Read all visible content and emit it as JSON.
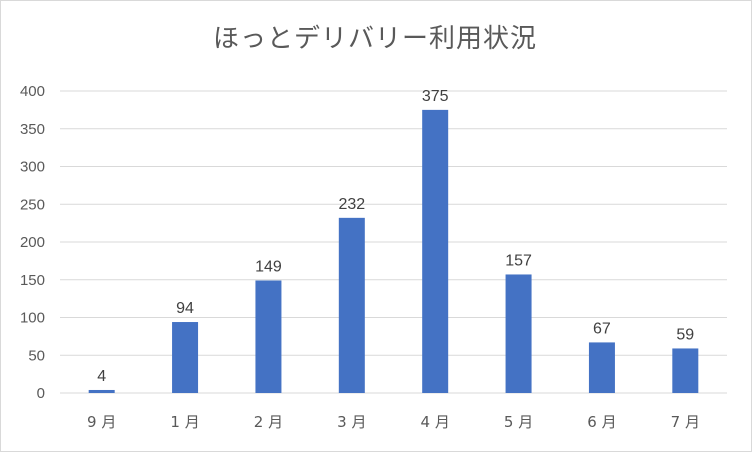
{
  "chart_data": {
    "type": "bar",
    "title": "ほっとデリバリー利用状況",
    "categories": [
      "9 月",
      "1 月",
      "2 月",
      "3 月",
      "4 月",
      "5 月",
      "6 月",
      "7 月"
    ],
    "values": [
      4,
      94,
      149,
      232,
      375,
      157,
      67,
      59
    ],
    "ylim": [
      0,
      400
    ],
    "yticks": [
      0,
      50,
      100,
      150,
      200,
      250,
      300,
      350,
      400
    ],
    "grid": true,
    "legend": "none",
    "data_labels": true,
    "bar_color": "#4472c4",
    "grid_color": "#d9d9d9",
    "text_color": "#595959"
  }
}
